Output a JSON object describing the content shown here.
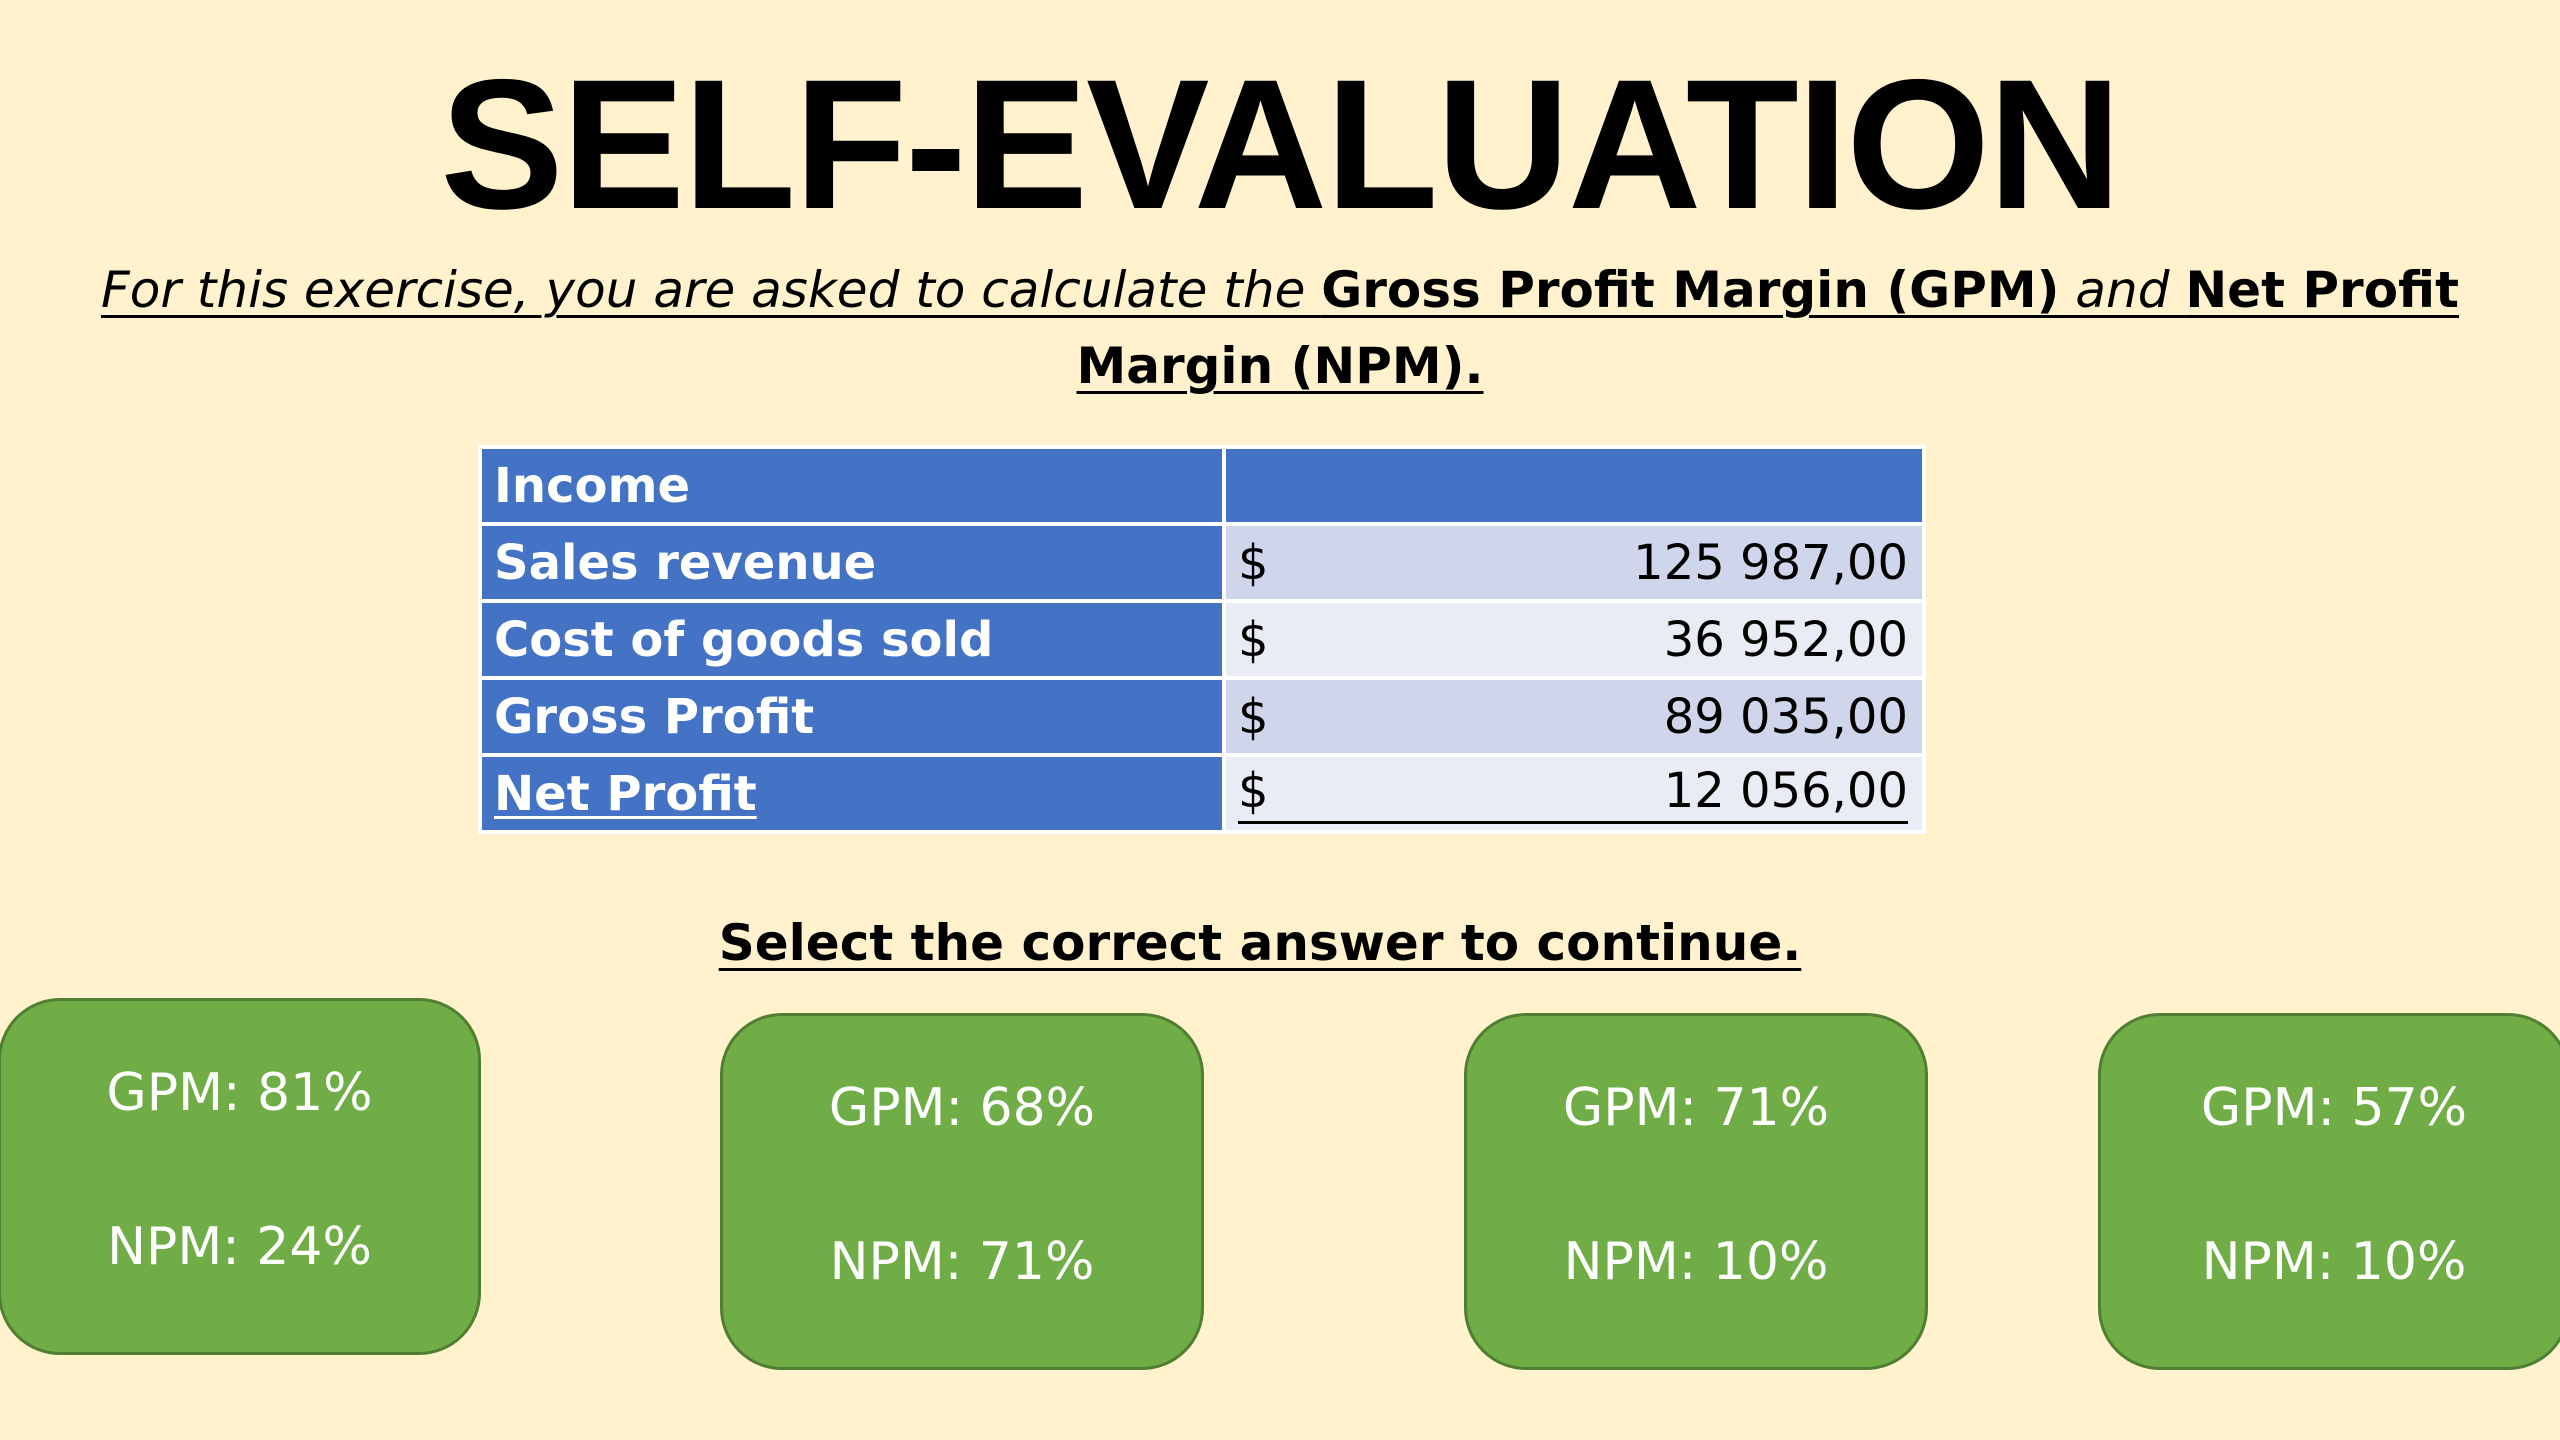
{
  "title": "SELF-EVALUATION",
  "instruction": {
    "part1": "For this exercise, you are asked to calculate the ",
    "term1": "Gross Profit Margin (GPM)",
    "part2": " and ",
    "term2": "Net Profit Margin (NPM)."
  },
  "table": {
    "header": "Income",
    "rows": [
      {
        "label": "Sales revenue",
        "currency": "$",
        "value": "125 987,00"
      },
      {
        "label": "Cost of goods sold",
        "currency": "$",
        "value": "36 952,00"
      },
      {
        "label": "Gross Profit",
        "currency": "$",
        "value": "89 035,00"
      },
      {
        "label": "Net Profit",
        "currency": "$",
        "value": "12 056,00"
      }
    ]
  },
  "prompt": "Select the correct answer to continue.",
  "options": [
    {
      "gpm": "GPM: 81%",
      "npm": "NPM: 24%"
    },
    {
      "gpm": "GPM: 68%",
      "npm": "NPM: 71%"
    },
    {
      "gpm": "GPM: 71%",
      "npm": "NPM: 10%"
    },
    {
      "gpm": "GPM: 57%",
      "npm": "NPM: 10%"
    }
  ],
  "colors": {
    "background": "#fff2cc",
    "table_header": "#4472c4",
    "table_value_dark": "#cfd5ea",
    "table_value_light": "#e9ebf5",
    "option_fill": "#70ad47",
    "option_border": "#507e32"
  }
}
